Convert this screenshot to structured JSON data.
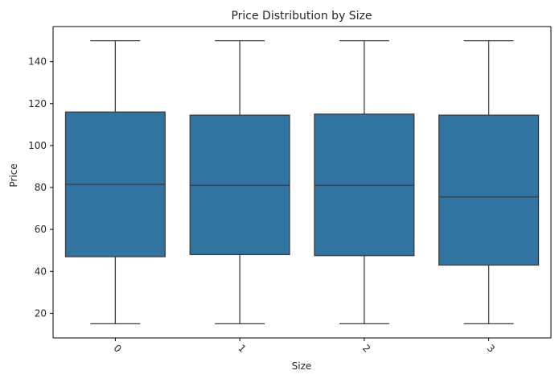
{
  "chart_data": {
    "type": "box",
    "title": "Price Distribution by Size",
    "xlabel": "Size",
    "ylabel": "Price",
    "categories": [
      "0",
      "1",
      "2",
      "3"
    ],
    "boxes": [
      {
        "category": "0",
        "whisker_low": 15,
        "q1": 47,
        "median": 81.5,
        "q3": 116,
        "whisker_high": 150
      },
      {
        "category": "1",
        "whisker_low": 15,
        "q1": 48,
        "median": 81,
        "q3": 114.5,
        "whisker_high": 150
      },
      {
        "category": "2",
        "whisker_low": 15,
        "q1": 47.5,
        "median": 81,
        "q3": 115,
        "whisker_high": 150
      },
      {
        "category": "3",
        "whisker_low": 15,
        "q1": 43,
        "median": 75.5,
        "q3": 114.5,
        "whisker_high": 150
      }
    ],
    "yticks": [
      20,
      40,
      60,
      80,
      100,
      120,
      140
    ],
    "ylim": [
      8.25,
      156.75
    ],
    "x_tick_rotation_deg": 45,
    "grid": false,
    "colors": {
      "box_fill": "#3274a1",
      "line": "#3d3d3d",
      "axis": "#000000"
    }
  }
}
